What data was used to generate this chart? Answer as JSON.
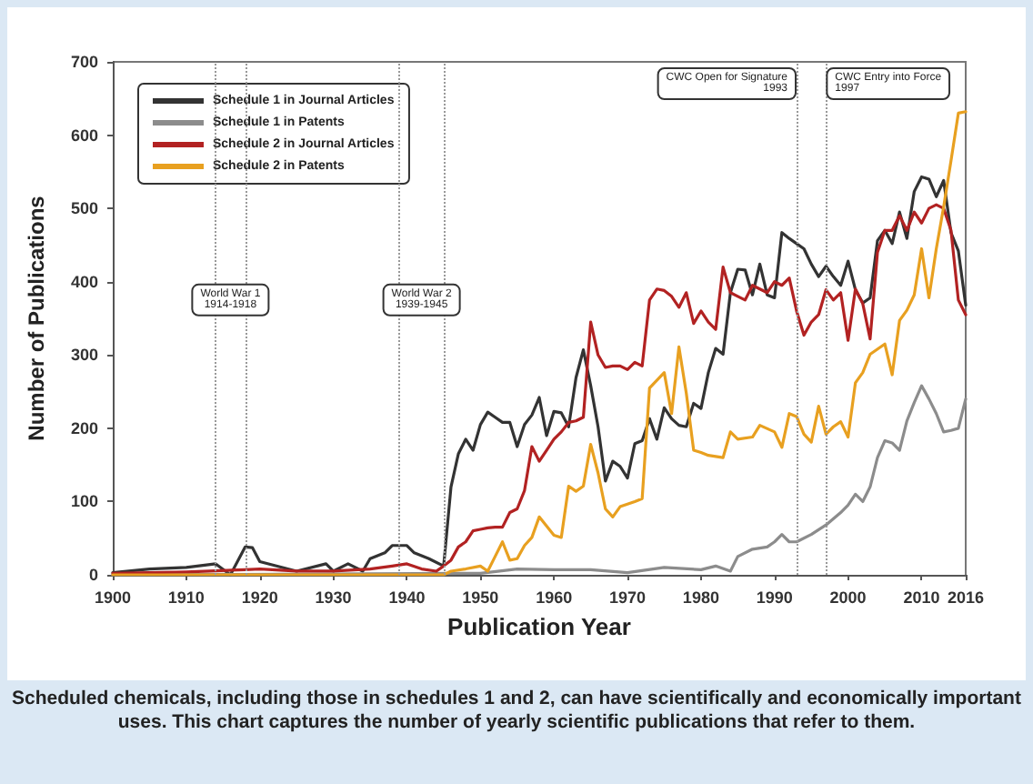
{
  "chart_data": {
    "type": "line",
    "xlabel": "Publication Year",
    "ylabel": "Number of Publications",
    "xlim": [
      1900,
      2016
    ],
    "xticks": [
      1900,
      1910,
      1920,
      1930,
      1940,
      1950,
      1960,
      1970,
      1980,
      1990,
      2000,
      2010,
      2016
    ],
    "ylim": [
      0,
      700
    ],
    "yticks": [
      0,
      100,
      200,
      300,
      400,
      500,
      600,
      700
    ],
    "grid": false,
    "legend": "top left",
    "marker": "none",
    "line_style": "solid",
    "ref_lines": [
      {
        "axis": "x",
        "value": 1914,
        "color": "#999999",
        "line_style": "dotted"
      },
      {
        "axis": "x",
        "value": 1918,
        "color": "#999999",
        "line_style": "dotted"
      },
      {
        "axis": "x",
        "value": 1939,
        "color": "#999999",
        "line_style": "dotted"
      },
      {
        "axis": "x",
        "value": 1945,
        "color": "#999999",
        "line_style": "dotted"
      },
      {
        "axis": "x",
        "value": 1993,
        "color": "#999999",
        "line_style": "dotted",
        "label": "CWC Open for Signature\n1993"
      },
      {
        "axis": "x",
        "value": 1997,
        "color": "#999999",
        "line_style": "dotted",
        "label": "CWC Entry into Force\n1997"
      }
    ],
    "annotations": [
      {
        "text": "World War 1\n1914-1918",
        "x": 1916,
        "y": 375
      },
      {
        "text": "World War 2\n1939-1945",
        "x": 1942,
        "y": 375
      },
      "Scheduled chemicals, including those in schedules 1 and 2, can have scientifically and economically important uses. This chart captures the number of yearly scientific publications that refer to them."
    ],
    "series": [
      {
        "name": "Schedule 1 in Journal Articles",
        "color": "#333333",
        "x": [
          1900,
          1905,
          1910,
          1914,
          1916,
          1918,
          1919,
          1920,
          1925,
          1929,
          1930,
          1932,
          1934,
          1935,
          1937,
          1938,
          1940,
          1941,
          1943,
          1945,
          1946,
          1947,
          1948,
          1949,
          1950,
          1951,
          1952,
          1953,
          1954,
          1955,
          1956,
          1957,
          1958,
          1959,
          1960,
          1961,
          1962,
          1963,
          1964,
          1965,
          1966,
          1967,
          1968,
          1969,
          1970,
          1971,
          1972,
          1973,
          1974,
          1975,
          1976,
          1977,
          1978,
          1979,
          1980,
          1981,
          1982,
          1983,
          1984,
          1985,
          1986,
          1987,
          1988,
          1989,
          1990,
          1991,
          1992,
          1993,
          1994,
          1995,
          1996,
          1997,
          1998,
          1999,
          2000,
          2001,
          2002,
          2003,
          2004,
          2005,
          2006,
          2007,
          2008,
          2009,
          2010,
          2011,
          2012,
          2013,
          2014,
          2015,
          2016
        ],
        "values": [
          3,
          8,
          10,
          15,
          0,
          38,
          37,
          18,
          5,
          15,
          5,
          15,
          5,
          22,
          30,
          40,
          40,
          30,
          22,
          12,
          120,
          165,
          185,
          170,
          205,
          222,
          215,
          208,
          208,
          175,
          205,
          218,
          242,
          190,
          223,
          221,
          202,
          269,
          307,
          258,
          202,
          128,
          155,
          148,
          132,
          179,
          183,
          213,
          185,
          228,
          213,
          204,
          202,
          234,
          227,
          276,
          309,
          301,
          385,
          417,
          416,
          382,
          424,
          382,
          378,
          467,
          459,
          452,
          445,
          424,
          407,
          421,
          407,
          395,
          428,
          389,
          371,
          378,
          456,
          470,
          452,
          495,
          459,
          523,
          543,
          540,
          516,
          538,
          467,
          442,
          368
        ]
      },
      {
        "name": "Schedule 1 in Patents",
        "color": "#8c8c8c",
        "x": [
          1900,
          1950,
          1955,
          1960,
          1965,
          1970,
          1975,
          1980,
          1982,
          1984,
          1985,
          1987,
          1989,
          1990,
          1991,
          1992,
          1993,
          1995,
          1997,
          1999,
          2000,
          2001,
          2002,
          2003,
          2004,
          2005,
          2006,
          2007,
          2008,
          2009,
          2010,
          2011,
          2012,
          2013,
          2014,
          2015,
          2016
        ],
        "values": [
          0,
          2,
          8,
          7,
          7,
          3,
          10,
          7,
          12,
          5,
          25,
          35,
          38,
          45,
          55,
          45,
          45,
          55,
          68,
          85,
          95,
          110,
          100,
          120,
          160,
          183,
          180,
          170,
          210,
          235,
          258,
          240,
          220,
          195,
          197,
          200,
          240
        ]
      },
      {
        "name": "Schedule 2 in Journal Articles",
        "color": "#b22222",
        "x": [
          1900,
          1905,
          1910,
          1918,
          1920,
          1925,
          1930,
          1935,
          1938,
          1940,
          1942,
          1944,
          1945,
          1946,
          1947,
          1948,
          1949,
          1950,
          1951,
          1952,
          1953,
          1954,
          1955,
          1956,
          1957,
          1958,
          1959,
          1960,
          1961,
          1962,
          1963,
          1964,
          1965,
          1966,
          1967,
          1968,
          1969,
          1970,
          1971,
          1972,
          1973,
          1974,
          1975,
          1976,
          1977,
          1978,
          1979,
          1980,
          1981,
          1982,
          1983,
          1984,
          1985,
          1986,
          1987,
          1988,
          1989,
          1990,
          1991,
          1992,
          1993,
          1994,
          1995,
          1996,
          1997,
          1998,
          1999,
          2000,
          2001,
          2002,
          2003,
          2004,
          2005,
          2006,
          2007,
          2008,
          2009,
          2010,
          2011,
          2012,
          2013,
          2014,
          2015,
          2016
        ],
        "values": [
          2,
          3,
          4,
          7,
          8,
          5,
          5,
          8,
          12,
          15,
          8,
          5,
          12,
          20,
          38,
          45,
          60,
          62,
          64,
          65,
          65,
          85,
          90,
          115,
          175,
          155,
          170,
          185,
          195,
          208,
          210,
          215,
          345,
          300,
          283,
          285,
          285,
          280,
          290,
          285,
          375,
          390,
          388,
          380,
          365,
          385,
          343,
          360,
          345,
          335,
          420,
          385,
          380,
          375,
          395,
          390,
          385,
          400,
          395,
          405,
          360,
          327,
          345,
          355,
          389,
          375,
          385,
          320,
          390,
          370,
          322,
          440,
          470,
          470,
          490,
          470,
          495,
          480,
          500,
          505,
          500,
          470,
          375,
          355
        ]
      },
      {
        "name": "Schedule 2 in Patents",
        "color": "#e8a020",
        "x": [
          1900,
          1945,
          1946,
          1948,
          1950,
          1951,
          1952,
          1953,
          1954,
          1955,
          1956,
          1957,
          1958,
          1960,
          1961,
          1962,
          1963,
          1964,
          1965,
          1966,
          1967,
          1968,
          1969,
          1971,
          1972,
          1973,
          1975,
          1976,
          1977,
          1978,
          1979,
          1980,
          1981,
          1983,
          1984,
          1985,
          1987,
          1988,
          1990,
          1991,
          1992,
          1993,
          1994,
          1995,
          1996,
          1997,
          1998,
          1999,
          2000,
          2001,
          2002,
          2003,
          2005,
          2006,
          2007,
          2008,
          2009,
          2010,
          2011,
          2012,
          2013,
          2014,
          2015,
          2016
        ],
        "values": [
          0,
          0,
          5,
          8,
          12,
          5,
          25,
          45,
          20,
          22,
          40,
          51,
          79,
          54,
          51,
          121,
          114,
          121,
          178,
          139,
          90,
          79,
          93,
          100,
          104,
          255,
          276,
          220,
          311,
          248,
          170,
          167,
          163,
          160,
          195,
          185,
          188,
          204,
          195,
          174,
          220,
          216,
          192,
          181,
          230,
          192,
          202,
          209,
          188,
          262,
          276,
          301,
          315,
          273,
          347,
          361,
          382,
          445,
          378,
          445,
          502,
          565,
          630,
          632
        ]
      }
    ]
  }
}
